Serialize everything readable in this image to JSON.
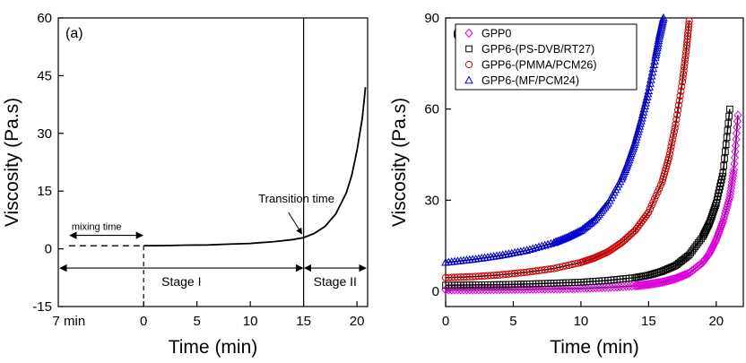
{
  "chart_data": [
    {
      "panel_label": "(a)",
      "type": "line",
      "xlabel": "Time (min)",
      "ylabel": "Viscosity (Pa.s)",
      "xlim": [
        -8,
        21
      ],
      "ylim": [
        -15,
        60
      ],
      "x_ticks": [
        0,
        5,
        10,
        15,
        20
      ],
      "x_extra_tick_label": "7 min",
      "y_ticks": [
        -15,
        0,
        15,
        30,
        45,
        60
      ],
      "grid": false,
      "series": [
        {
          "style": "solid",
          "x": [
            0,
            2,
            4,
            6,
            8,
            10,
            11,
            12,
            13,
            14,
            15,
            16,
            17,
            18,
            19,
            19.5,
            20,
            20.5,
            20.8
          ],
          "y": [
            0.8,
            0.85,
            0.95,
            1.0,
            1.2,
            1.4,
            1.6,
            1.8,
            2.1,
            2.4,
            2.9,
            4.0,
            5.8,
            9.0,
            14.5,
            19,
            25.5,
            34,
            42
          ]
        },
        {
          "style": "dashed",
          "x": [
            -7,
            0
          ],
          "y": [
            0.8,
            0.8
          ]
        }
      ],
      "vlines": [
        {
          "x": 0,
          "style": "dashed"
        },
        {
          "x": 15,
          "style": "solid"
        }
      ],
      "annotations": [
        {
          "text": "mixing time",
          "from_x": -7,
          "to_x": 0,
          "y": 3.5
        },
        {
          "text": "Stage I",
          "from_x": -8,
          "to_x": 15,
          "y": -5
        },
        {
          "text": "Stage II",
          "from_x": 15,
          "to_x": 21,
          "y": -5
        },
        {
          "text": "Transition time",
          "arrow_to": [
            15,
            3.2
          ]
        }
      ]
    },
    {
      "panel_label": "(b)",
      "type": "scatter",
      "xlabel": "Time (min)",
      "ylabel": "Viscosity (Pa.s)",
      "xlim": [
        0,
        22
      ],
      "ylim": [
        -5,
        90
      ],
      "x_ticks": [
        0,
        5,
        10,
        15,
        20
      ],
      "y_ticks": [
        0,
        30,
        60,
        90
      ],
      "grid": false,
      "legend": "top-left",
      "series": [
        {
          "name": "GPP0",
          "marker": "diamond",
          "color": "#e000e0",
          "x": [
            0,
            2,
            4,
            6,
            8,
            10,
            12,
            14,
            15,
            16,
            17,
            18,
            19,
            19.5,
            20,
            20.5,
            21,
            21.3,
            21.6
          ],
          "y": [
            0.5,
            0.5,
            0.6,
            0.7,
            0.8,
            1.0,
            1.3,
            1.8,
            2.3,
            3.0,
            4.2,
            6.0,
            9.5,
            12.5,
            17,
            23,
            31,
            40,
            58
          ]
        },
        {
          "name": "GPP6-(PS-DVB/RT27)",
          "marker": "square",
          "color": "#000000",
          "x": [
            0,
            2,
            4,
            6,
            8,
            10,
            12,
            14,
            15,
            16,
            17,
            18,
            19,
            19.5,
            20,
            20.5,
            21
          ],
          "y": [
            2.0,
            2.1,
            2.2,
            2.4,
            2.7,
            3.0,
            3.6,
            4.5,
            5.3,
            6.6,
            8.5,
            12,
            18,
            22.5,
            29,
            39,
            60
          ]
        },
        {
          "name": "GPP6-(PMMA/PCM26)",
          "marker": "circle",
          "color": "#d00000",
          "x": [
            0,
            2,
            4,
            6,
            8,
            10,
            11,
            12,
            13,
            14,
            15,
            16,
            16.5,
            17,
            17.5,
            17.8,
            18
          ],
          "y": [
            4.5,
            4.8,
            5.4,
            6.3,
            7.5,
            9.5,
            11,
            13,
            16,
            20,
            26,
            36,
            44,
            55,
            69,
            80,
            89
          ]
        },
        {
          "name": "GPP6-(MF/PCM24)",
          "marker": "triangle",
          "color": "#0000d0",
          "x": [
            0,
            2,
            4,
            6,
            8,
            9,
            10,
            11,
            12,
            13,
            13.5,
            14,
            14.5,
            15,
            15.5,
            15.8,
            16.1
          ],
          "y": [
            9.5,
            10.5,
            11.8,
            13.5,
            16,
            17.8,
            20,
            23.5,
            29,
            37,
            42.5,
            49,
            57,
            66,
            77,
            84,
            90
          ]
        }
      ]
    }
  ]
}
